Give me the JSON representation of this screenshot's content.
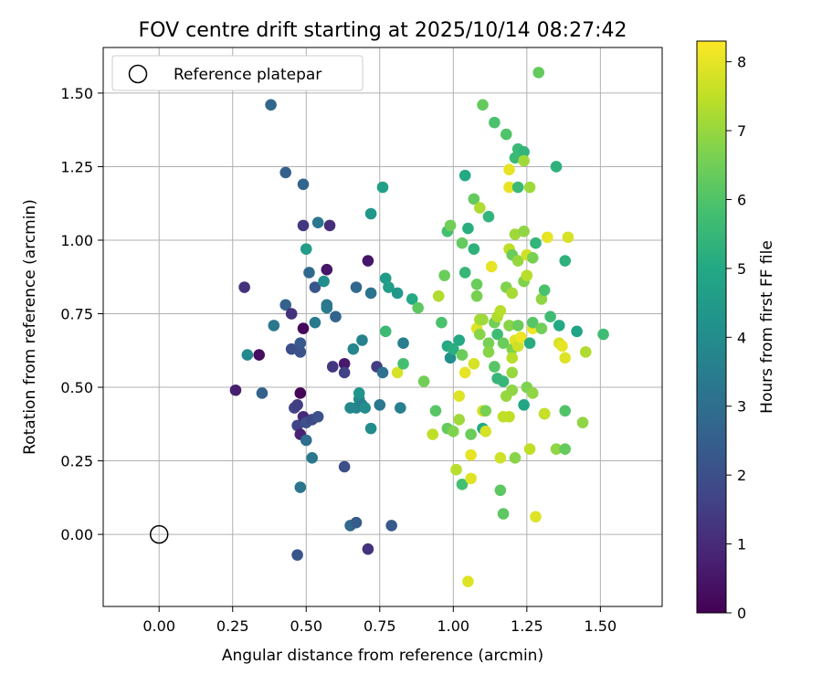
{
  "chart_data": {
    "type": "scatter",
    "title": "FOV centre drift starting at 2025/10/14 08:27:42",
    "xlabel": "Angular distance from reference (arcmin)",
    "ylabel": "Rotation from reference (arcmin)",
    "xlim": [
      -0.19,
      1.71
    ],
    "ylim": [
      -0.245,
      1.655
    ],
    "xticks": [
      "0.00",
      "0.25",
      "0.50",
      "0.75",
      "1.00",
      "1.25",
      "1.50"
    ],
    "xtick_values": [
      0,
      0.25,
      0.5,
      0.75,
      1.0,
      1.25,
      1.5
    ],
    "yticks": [
      "0.00",
      "0.25",
      "0.50",
      "0.75",
      "1.00",
      "1.25",
      "1.50"
    ],
    "ytick_values": [
      0,
      0.25,
      0.5,
      0.75,
      1.0,
      1.25,
      1.5
    ],
    "grid": true,
    "legend": {
      "position": "top-left",
      "label": "Reference platepar"
    },
    "reference_point": {
      "x": 0.0,
      "y": 0.0
    },
    "colorbar": {
      "label": "Hours from first FF file",
      "min": 0,
      "max": 8.3,
      "ticks": [
        "0",
        "1",
        "2",
        "3",
        "4",
        "5",
        "6",
        "7",
        "8"
      ],
      "tick_values": [
        0,
        1,
        2,
        3,
        4,
        5,
        6,
        7,
        8
      ],
      "colormap": "viridis"
    },
    "points": [
      {
        "x": 0.26,
        "y": 0.49,
        "h": 0.7
      },
      {
        "x": 0.29,
        "y": 0.84,
        "h": 1.2
      },
      {
        "x": 0.3,
        "y": 0.61,
        "h": 3.9
      },
      {
        "x": 0.34,
        "y": 0.61,
        "h": 0.3
      },
      {
        "x": 0.35,
        "y": 0.48,
        "h": 2.6
      },
      {
        "x": 0.38,
        "y": 1.46,
        "h": 2.8
      },
      {
        "x": 0.39,
        "y": 0.71,
        "h": 3.3
      },
      {
        "x": 0.43,
        "y": 1.23,
        "h": 2.5
      },
      {
        "x": 0.43,
        "y": 0.78,
        "h": 2.6
      },
      {
        "x": 0.45,
        "y": 0.75,
        "h": 1.2
      },
      {
        "x": 0.45,
        "y": 0.63,
        "h": 2.0
      },
      {
        "x": 0.46,
        "y": 0.43,
        "h": 1.7
      },
      {
        "x": 0.47,
        "y": 0.44,
        "h": 1.5
      },
      {
        "x": 0.47,
        "y": 0.37,
        "h": 1.7
      },
      {
        "x": 0.47,
        "y": -0.07,
        "h": 2.2
      },
      {
        "x": 0.48,
        "y": 0.16,
        "h": 3.2
      },
      {
        "x": 0.48,
        "y": 0.62,
        "h": 2.1
      },
      {
        "x": 0.48,
        "y": 0.65,
        "h": 2.3
      },
      {
        "x": 0.48,
        "y": 0.48,
        "h": 0.1
      },
      {
        "x": 0.48,
        "y": 0.34,
        "h": 0.8
      },
      {
        "x": 0.49,
        "y": 1.05,
        "h": 1.3
      },
      {
        "x": 0.49,
        "y": 1.19,
        "h": 2.7
      },
      {
        "x": 0.49,
        "y": 0.7,
        "h": 0.2
      },
      {
        "x": 0.49,
        "y": 0.4,
        "h": 1.0
      },
      {
        "x": 0.5,
        "y": 0.97,
        "h": 4.6
      },
      {
        "x": 0.5,
        "y": 0.32,
        "h": 3.0
      },
      {
        "x": 0.5,
        "y": 0.38,
        "h": 2.1
      },
      {
        "x": 0.51,
        "y": 0.89,
        "h": 2.8
      },
      {
        "x": 0.52,
        "y": 0.26,
        "h": 3.3
      },
      {
        "x": 0.52,
        "y": 0.39,
        "h": 1.8
      },
      {
        "x": 0.53,
        "y": 0.72,
        "h": 3.4
      },
      {
        "x": 0.53,
        "y": 0.84,
        "h": 2.2
      },
      {
        "x": 0.54,
        "y": 1.06,
        "h": 3.3
      },
      {
        "x": 0.54,
        "y": 0.4,
        "h": 2.1
      },
      {
        "x": 0.56,
        "y": 0.86,
        "h": 4.1
      },
      {
        "x": 0.57,
        "y": 0.9,
        "h": 0.5
      },
      {
        "x": 0.57,
        "y": 0.77,
        "h": 3.5
      },
      {
        "x": 0.57,
        "y": 0.78,
        "h": 3.3
      },
      {
        "x": 0.58,
        "y": 1.05,
        "h": 1.1
      },
      {
        "x": 0.59,
        "y": 0.57,
        "h": 1.3
      },
      {
        "x": 0.6,
        "y": 0.74,
        "h": 2.7
      },
      {
        "x": 0.63,
        "y": 0.58,
        "h": 0.6
      },
      {
        "x": 0.63,
        "y": 0.55,
        "h": 1.6
      },
      {
        "x": 0.63,
        "y": 0.23,
        "h": 2.0
      },
      {
        "x": 0.65,
        "y": 0.43,
        "h": 3.9
      },
      {
        "x": 0.65,
        "y": 0.03,
        "h": 2.9
      },
      {
        "x": 0.66,
        "y": 0.63,
        "h": 3.8
      },
      {
        "x": 0.67,
        "y": 0.84,
        "h": 2.8
      },
      {
        "x": 0.67,
        "y": 0.04,
        "h": 2.4
      },
      {
        "x": 0.67,
        "y": 0.43,
        "h": 3.8
      },
      {
        "x": 0.68,
        "y": 0.46,
        "h": 3.9
      },
      {
        "x": 0.68,
        "y": 0.48,
        "h": 4.3
      },
      {
        "x": 0.69,
        "y": 0.44,
        "h": 3.6
      },
      {
        "x": 0.69,
        "y": 0.66,
        "h": 3.7
      },
      {
        "x": 0.7,
        "y": 0.43,
        "h": 4.0
      },
      {
        "x": 0.71,
        "y": 0.93,
        "h": 0.5
      },
      {
        "x": 0.71,
        "y": -0.05,
        "h": 1.2
      },
      {
        "x": 0.72,
        "y": 1.09,
        "h": 4.4
      },
      {
        "x": 0.72,
        "y": 0.82,
        "h": 3.2
      },
      {
        "x": 0.72,
        "y": 0.36,
        "h": 4.0
      },
      {
        "x": 0.74,
        "y": 0.57,
        "h": 1.5
      },
      {
        "x": 0.75,
        "y": 0.44,
        "h": 3.3
      },
      {
        "x": 0.76,
        "y": 0.55,
        "h": 3.1
      },
      {
        "x": 0.76,
        "y": 1.18,
        "h": 4.7
      },
      {
        "x": 0.77,
        "y": 0.87,
        "h": 4.5
      },
      {
        "x": 0.77,
        "y": 0.69,
        "h": 5.6
      },
      {
        "x": 0.78,
        "y": 0.84,
        "h": 4.6
      },
      {
        "x": 0.79,
        "y": 0.03,
        "h": 2.3
      },
      {
        "x": 0.81,
        "y": 0.82,
        "h": 4.4
      },
      {
        "x": 0.81,
        "y": 0.55,
        "h": 7.8
      },
      {
        "x": 0.82,
        "y": 0.43,
        "h": 3.6
      },
      {
        "x": 0.83,
        "y": 0.58,
        "h": 5.8
      },
      {
        "x": 0.83,
        "y": 0.65,
        "h": 3.5
      },
      {
        "x": 0.86,
        "y": 0.8,
        "h": 5.0
      },
      {
        "x": 0.88,
        "y": 0.77,
        "h": 6.2
      },
      {
        "x": 0.9,
        "y": 0.52,
        "h": 6.5
      },
      {
        "x": 0.93,
        "y": 0.34,
        "h": 7.5
      },
      {
        "x": 0.94,
        "y": 0.42,
        "h": 6.1
      },
      {
        "x": 0.95,
        "y": 0.81,
        "h": 7.3
      },
      {
        "x": 0.96,
        "y": 0.72,
        "h": 5.9
      },
      {
        "x": 0.97,
        "y": 0.88,
        "h": 6.4
      },
      {
        "x": 0.98,
        "y": 1.03,
        "h": 5.8
      },
      {
        "x": 0.98,
        "y": 0.64,
        "h": 5.0
      },
      {
        "x": 0.98,
        "y": 0.36,
        "h": 6.3
      },
      {
        "x": 0.99,
        "y": 1.05,
        "h": 6.5
      },
      {
        "x": 0.99,
        "y": 0.6,
        "h": 4.1
      },
      {
        "x": 1.0,
        "y": 0.63,
        "h": 5.2
      },
      {
        "x": 1.0,
        "y": 0.35,
        "h": 6.7
      },
      {
        "x": 1.01,
        "y": 0.22,
        "h": 7.4
      },
      {
        "x": 1.02,
        "y": 0.66,
        "h": 5.0
      },
      {
        "x": 1.02,
        "y": 0.47,
        "h": 7.9
      },
      {
        "x": 1.02,
        "y": 0.39,
        "h": 7.1
      },
      {
        "x": 1.03,
        "y": 0.99,
        "h": 6.3
      },
      {
        "x": 1.03,
        "y": 0.61,
        "h": 6.4
      },
      {
        "x": 1.03,
        "y": 0.17,
        "h": 5.8
      },
      {
        "x": 1.04,
        "y": 1.22,
        "h": 5.0
      },
      {
        "x": 1.04,
        "y": 0.89,
        "h": 5.5
      },
      {
        "x": 1.04,
        "y": 0.55,
        "h": 8.0
      },
      {
        "x": 1.05,
        "y": -0.16,
        "h": 7.9
      },
      {
        "x": 1.05,
        "y": 1.04,
        "h": 5.2
      },
      {
        "x": 1.06,
        "y": 0.34,
        "h": 6.4
      },
      {
        "x": 1.06,
        "y": 0.27,
        "h": 8.0
      },
      {
        "x": 1.06,
        "y": 0.19,
        "h": 7.9
      },
      {
        "x": 1.07,
        "y": 1.14,
        "h": 6.3
      },
      {
        "x": 1.07,
        "y": 0.97,
        "h": 5.3
      },
      {
        "x": 1.07,
        "y": 0.58,
        "h": 7.8
      },
      {
        "x": 1.08,
        "y": 0.85,
        "h": 6.4
      },
      {
        "x": 1.08,
        "y": 0.81,
        "h": 6.6
      },
      {
        "x": 1.08,
        "y": 0.7,
        "h": 7.9
      },
      {
        "x": 1.09,
        "y": 0.73,
        "h": 7.2
      },
      {
        "x": 1.09,
        "y": 0.68,
        "h": 6.8
      },
      {
        "x": 1.09,
        "y": 1.11,
        "h": 7.3
      },
      {
        "x": 1.1,
        "y": 1.46,
        "h": 6.3
      },
      {
        "x": 1.1,
        "y": 0.73,
        "h": 7.1
      },
      {
        "x": 1.1,
        "y": 0.42,
        "h": 7.8
      },
      {
        "x": 1.1,
        "y": 0.36,
        "h": 5.0
      },
      {
        "x": 1.11,
        "y": 0.42,
        "h": 6.6
      },
      {
        "x": 1.11,
        "y": 0.35,
        "h": 7.8
      },
      {
        "x": 1.12,
        "y": 1.08,
        "h": 5.4
      },
      {
        "x": 1.12,
        "y": 0.65,
        "h": 6.6
      },
      {
        "x": 1.12,
        "y": 0.62,
        "h": 6.8
      },
      {
        "x": 1.13,
        "y": 0.91,
        "h": 8.0
      },
      {
        "x": 1.14,
        "y": 1.4,
        "h": 5.9
      },
      {
        "x": 1.14,
        "y": 0.72,
        "h": 6.5
      },
      {
        "x": 1.14,
        "y": 0.57,
        "h": 6.1
      },
      {
        "x": 1.15,
        "y": 0.53,
        "h": 5.5
      },
      {
        "x": 1.15,
        "y": 0.74,
        "h": 7.3
      },
      {
        "x": 1.15,
        "y": 0.68,
        "h": 5.7
      },
      {
        "x": 1.16,
        "y": 0.76,
        "h": 7.4
      },
      {
        "x": 1.16,
        "y": 0.26,
        "h": 7.7
      },
      {
        "x": 1.16,
        "y": 0.15,
        "h": 6.2
      },
      {
        "x": 1.17,
        "y": 0.65,
        "h": 6.4
      },
      {
        "x": 1.17,
        "y": 0.52,
        "h": 5.5
      },
      {
        "x": 1.17,
        "y": 0.4,
        "h": 7.5
      },
      {
        "x": 1.17,
        "y": 0.07,
        "h": 6.2
      },
      {
        "x": 1.18,
        "y": 1.36,
        "h": 6.0
      },
      {
        "x": 1.18,
        "y": 0.84,
        "h": 6.7
      },
      {
        "x": 1.18,
        "y": 0.47,
        "h": 7.0
      },
      {
        "x": 1.19,
        "y": 1.24,
        "h": 8.0
      },
      {
        "x": 1.19,
        "y": 1.18,
        "h": 8.0
      },
      {
        "x": 1.19,
        "y": 0.97,
        "h": 7.5
      },
      {
        "x": 1.19,
        "y": 0.71,
        "h": 6.8
      },
      {
        "x": 1.19,
        "y": 0.4,
        "h": 7.5
      },
      {
        "x": 1.2,
        "y": 0.95,
        "h": 6.4
      },
      {
        "x": 1.2,
        "y": 0.82,
        "h": 7.2
      },
      {
        "x": 1.2,
        "y": 0.63,
        "h": 6.7
      },
      {
        "x": 1.2,
        "y": 0.6,
        "h": 7.4
      },
      {
        "x": 1.2,
        "y": 0.55,
        "h": 7.0
      },
      {
        "x": 1.2,
        "y": 0.49,
        "h": 6.9
      },
      {
        "x": 1.21,
        "y": 1.28,
        "h": 5.6
      },
      {
        "x": 1.21,
        "y": 1.02,
        "h": 7.1
      },
      {
        "x": 1.21,
        "y": 0.66,
        "h": 7.9
      },
      {
        "x": 1.21,
        "y": 0.26,
        "h": 6.8
      },
      {
        "x": 1.22,
        "y": 1.31,
        "h": 5.6
      },
      {
        "x": 1.22,
        "y": 1.18,
        "h": 5.6
      },
      {
        "x": 1.22,
        "y": 0.93,
        "h": 7.0
      },
      {
        "x": 1.22,
        "y": 0.71,
        "h": 6.4
      },
      {
        "x": 1.22,
        "y": 0.64,
        "h": 7.7
      },
      {
        "x": 1.23,
        "y": 0.67,
        "h": 8.1
      },
      {
        "x": 1.24,
        "y": 1.3,
        "h": 5.4
      },
      {
        "x": 1.24,
        "y": 1.27,
        "h": 7.1
      },
      {
        "x": 1.24,
        "y": 1.03,
        "h": 6.9
      },
      {
        "x": 1.24,
        "y": 0.86,
        "h": 6.7
      },
      {
        "x": 1.24,
        "y": 0.44,
        "h": 4.9
      },
      {
        "x": 1.25,
        "y": 0.95,
        "h": 7.7
      },
      {
        "x": 1.25,
        "y": 0.5,
        "h": 6.7
      },
      {
        "x": 1.25,
        "y": 0.88,
        "h": 7.4
      },
      {
        "x": 1.26,
        "y": 1.18,
        "h": 7.1
      },
      {
        "x": 1.26,
        "y": 0.65,
        "h": 5.1
      },
      {
        "x": 1.26,
        "y": 0.29,
        "h": 7.5
      },
      {
        "x": 1.27,
        "y": 0.94,
        "h": 6.6
      },
      {
        "x": 1.27,
        "y": 0.7,
        "h": 8.1
      },
      {
        "x": 1.27,
        "y": 0.72,
        "h": 6.1
      },
      {
        "x": 1.27,
        "y": 0.48,
        "h": 6.9
      },
      {
        "x": 1.28,
        "y": 0.99,
        "h": 5.4
      },
      {
        "x": 1.28,
        "y": 0.06,
        "h": 7.9
      },
      {
        "x": 1.29,
        "y": 1.57,
        "h": 6.3
      },
      {
        "x": 1.3,
        "y": 0.8,
        "h": 6.9
      },
      {
        "x": 1.3,
        "y": 0.7,
        "h": 6.5
      },
      {
        "x": 1.31,
        "y": 0.83,
        "h": 5.9
      },
      {
        "x": 1.31,
        "y": 0.41,
        "h": 5.2
      },
      {
        "x": 1.31,
        "y": 0.41,
        "h": 7.6
      },
      {
        "x": 1.32,
        "y": 1.01,
        "h": 8.0
      },
      {
        "x": 1.33,
        "y": 0.74,
        "h": 5.7
      },
      {
        "x": 1.35,
        "y": 1.25,
        "h": 5.3
      },
      {
        "x": 1.35,
        "y": 0.29,
        "h": 6.9
      },
      {
        "x": 1.36,
        "y": 0.71,
        "h": 5.0
      },
      {
        "x": 1.36,
        "y": 0.65,
        "h": 7.8
      },
      {
        "x": 1.37,
        "y": 0.64,
        "h": 8.0
      },
      {
        "x": 1.38,
        "y": 0.93,
        "h": 5.3
      },
      {
        "x": 1.38,
        "y": 0.42,
        "h": 6.0
      },
      {
        "x": 1.38,
        "y": 0.29,
        "h": 6.3
      },
      {
        "x": 1.38,
        "y": 0.6,
        "h": 7.9
      },
      {
        "x": 1.39,
        "y": 1.01,
        "h": 7.8
      },
      {
        "x": 1.42,
        "y": 0.69,
        "h": 4.8
      },
      {
        "x": 1.44,
        "y": 0.38,
        "h": 6.9
      },
      {
        "x": 1.45,
        "y": 0.62,
        "h": 7.3
      },
      {
        "x": 1.51,
        "y": 0.68,
        "h": 5.7
      }
    ]
  }
}
